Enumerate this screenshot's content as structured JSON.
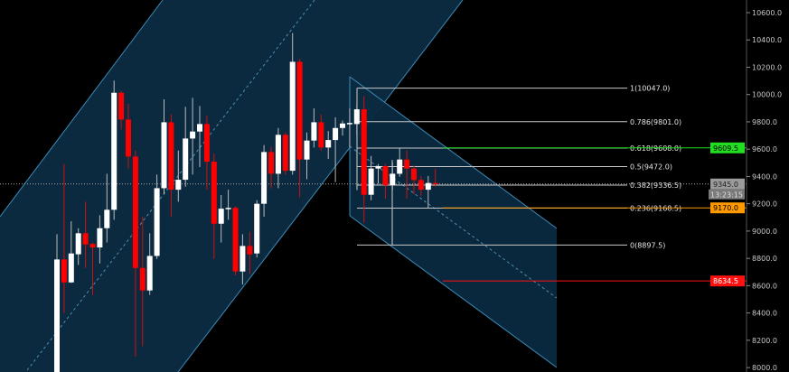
{
  "chart_data": {
    "type": "candlestick",
    "ylim": [
      8000,
      10700
    ],
    "y_ticks": [
      "8000.0",
      "8200.0",
      "8400.0",
      "8600.0",
      "8800.0",
      "9000.0",
      "9200.0",
      "9400.0",
      "9600.0",
      "9800.0",
      "10000.0",
      "10200.0",
      "10400.0",
      "10600.0"
    ],
    "colors": {
      "up": "#ffffff",
      "down": "#ff0000",
      "background": "#000000",
      "channel_fill": "#0b2a40",
      "channel_line": "#3d8ab8"
    },
    "candles": [
      [
        7950,
        8977,
        7900,
        8792
      ],
      [
        8792,
        9491,
        8399,
        8624
      ],
      [
        8624,
        9072,
        8620,
        8836
      ],
      [
        8830,
        9021,
        8752,
        8984
      ],
      [
        8984,
        9215,
        8730,
        8902
      ],
      [
        8906,
        8917,
        8532,
        8880
      ],
      [
        8880,
        9116,
        8763,
        9021
      ],
      [
        9021,
        9420,
        8917,
        9156
      ],
      [
        9156,
        10102,
        9083,
        10013
      ],
      [
        10013,
        10030,
        9744,
        9817
      ],
      [
        9817,
        9932,
        9458,
        9546
      ],
      [
        9546,
        9590,
        8080,
        8730
      ],
      [
        8730,
        9105,
        8157,
        8565
      ],
      [
        8565,
        8984,
        8532,
        8818
      ],
      [
        8818,
        9414,
        8796,
        9314
      ],
      [
        9314,
        9965,
        9270,
        9797
      ],
      [
        9797,
        9855,
        9105,
        9303
      ],
      [
        9303,
        9590,
        9215,
        9376
      ],
      [
        9376,
        9910,
        9325,
        9678
      ],
      [
        9678,
        9976,
        9414,
        9729
      ],
      [
        9729,
        9916,
        9469,
        9784
      ],
      [
        9784,
        9844,
        9303,
        9508
      ],
      [
        9508,
        9568,
        8796,
        9054
      ],
      [
        9054,
        9264,
        8917,
        9164
      ],
      [
        9168,
        9303,
        9083,
        9170
      ],
      [
        9170,
        9182,
        8675,
        8704
      ],
      [
        8704,
        8977,
        8609,
        8891
      ],
      [
        8891,
        8995,
        8686,
        8829
      ],
      [
        8836,
        9226,
        8807,
        9200
      ],
      [
        9200,
        9630,
        9105,
        9579
      ],
      [
        9579,
        9616,
        9314,
        9420
      ],
      [
        9420,
        9755,
        9314,
        9705
      ],
      [
        9705,
        9722,
        9414,
        9442
      ],
      [
        9442,
        10450,
        9414,
        10240
      ],
      [
        10240,
        10262,
        9248,
        9524
      ],
      [
        9524,
        9722,
        9380,
        9663
      ],
      [
        9663,
        9899,
        9612,
        9797
      ],
      [
        9797,
        9855,
        9590,
        9612
      ],
      [
        9612,
        9733,
        9528,
        9667
      ],
      [
        9667,
        9833,
        9358,
        9755
      ],
      [
        9755,
        9810,
        9700,
        9788
      ],
      [
        9790,
        9899,
        9612,
        9792
      ],
      [
        9784,
        9932,
        9700,
        9892
      ],
      [
        9892,
        9987,
        9061,
        9266
      ],
      [
        9266,
        9550,
        9226,
        9458
      ],
      [
        9458,
        9491,
        9347,
        9475
      ],
      [
        9475,
        9491,
        9237,
        9336
      ],
      [
        9336,
        9502,
        9303,
        9420
      ],
      [
        9420,
        9612,
        9398,
        9524
      ],
      [
        9524,
        9590,
        9237,
        9458
      ],
      [
        9458,
        9480,
        9270,
        9374
      ],
      [
        9374,
        9403,
        9259,
        9303
      ],
      [
        9303,
        9403,
        9171,
        9352
      ],
      [
        9352,
        9458,
        9325,
        9345
      ]
    ],
    "candle_format": [
      "open",
      "high",
      "low",
      "close"
    ],
    "fibonacci": [
      {
        "label": "1(10047.0)",
        "price": 10047.0
      },
      {
        "label": "0.786(9801.0)",
        "price": 9801.0
      },
      {
        "label": "0.618(9608.0)",
        "price": 9608.0
      },
      {
        "label": "0.5(9472.0)",
        "price": 9472.0
      },
      {
        "label": "0.382(9336.5)",
        "price": 9336.5
      },
      {
        "label": "0.236(9168.5)",
        "price": 9168.5
      },
      {
        "label": "0(8897.5)",
        "price": 8897.5
      }
    ],
    "price_lines": [
      {
        "label": "9609.5",
        "price": 9609.5,
        "color": "#22dd22",
        "text_color": "#000000"
      },
      {
        "label": "9345.0",
        "price": 9345.0,
        "color": "#9a9a9a",
        "text_color": "#222222"
      },
      {
        "label": "9170.0",
        "price": 9170.0,
        "color": "#ff9900",
        "text_color": "#000000"
      },
      {
        "label": "8634.5",
        "price": 8634.5,
        "color": "#ff1111",
        "text_color": "#ffffff"
      }
    ],
    "countdown": "13:23:15"
  }
}
